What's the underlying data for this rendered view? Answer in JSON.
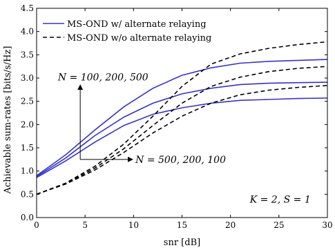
{
  "chart_data": {
    "type": "line",
    "xlabel": "snr [dB]",
    "ylabel": "Achievable sum-rates [bits/s/Hz]",
    "xlim": [
      0,
      30
    ],
    "ylim": [
      0,
      4.5
    ],
    "xticks": [
      0,
      5,
      10,
      15,
      20,
      25,
      30
    ],
    "yticks": [
      0.0,
      0.5,
      1.0,
      1.5,
      2.0,
      2.5,
      3.0,
      3.5,
      4.0,
      4.5
    ],
    "xtick_labels": [
      "0",
      "5",
      "10",
      "15",
      "20",
      "25",
      "30"
    ],
    "ytick_labels": [
      "0.0",
      "0.5",
      "1.0",
      "1.5",
      "2.0",
      "2.5",
      "3.0",
      "3.5",
      "4.0",
      "4.5"
    ],
    "grid": false,
    "legend": {
      "placement": "top-left",
      "entries": [
        {
          "label": "MS-OND w/ alternate relaying",
          "color": "#3333cc",
          "style": "solid"
        },
        {
          "label": "MS-OND w/o alternate relaying",
          "color": "#000000",
          "style": "dashed"
        }
      ]
    },
    "series": [
      {
        "group": "w/",
        "N": 500,
        "color": "#3333cc",
        "style": "solid",
        "x": [
          0,
          3,
          6,
          9,
          12,
          15,
          18,
          21,
          24,
          27,
          30
        ],
        "y": [
          0.9,
          1.35,
          1.88,
          2.38,
          2.78,
          3.06,
          3.22,
          3.32,
          3.36,
          3.38,
          3.4
        ]
      },
      {
        "group": "w/",
        "N": 200,
        "color": "#3333cc",
        "style": "solid",
        "x": [
          0,
          3,
          6,
          9,
          12,
          15,
          18,
          21,
          24,
          27,
          30
        ],
        "y": [
          0.88,
          1.28,
          1.76,
          2.16,
          2.46,
          2.66,
          2.78,
          2.86,
          2.89,
          2.9,
          2.91
        ]
      },
      {
        "group": "w/",
        "N": 100,
        "color": "#3333cc",
        "style": "solid",
        "x": [
          0,
          3,
          6,
          9,
          12,
          15,
          18,
          21,
          24,
          27,
          30
        ],
        "y": [
          0.86,
          1.22,
          1.62,
          1.98,
          2.22,
          2.36,
          2.46,
          2.52,
          2.54,
          2.56,
          2.57
        ]
      },
      {
        "group": "w/o",
        "N": 500,
        "color": "#000000",
        "style": "dashed",
        "x": [
          0,
          3,
          6,
          9,
          12,
          15,
          18,
          21,
          24,
          27,
          30
        ],
        "y": [
          0.5,
          0.74,
          1.1,
          1.58,
          2.18,
          2.82,
          3.3,
          3.52,
          3.64,
          3.72,
          3.78
        ]
      },
      {
        "group": "w/o",
        "N": 200,
        "color": "#000000",
        "style": "dashed",
        "x": [
          0,
          3,
          6,
          9,
          12,
          15,
          18,
          21,
          24,
          27,
          30
        ],
        "y": [
          0.5,
          0.73,
          1.06,
          1.48,
          1.98,
          2.46,
          2.82,
          3.02,
          3.14,
          3.21,
          3.25
        ]
      },
      {
        "group": "w/o",
        "N": 100,
        "color": "#000000",
        "style": "dashed",
        "x": [
          0,
          3,
          6,
          9,
          12,
          15,
          18,
          21,
          24,
          27,
          30
        ],
        "y": [
          0.5,
          0.72,
          1.02,
          1.4,
          1.82,
          2.18,
          2.46,
          2.64,
          2.74,
          2.8,
          2.84
        ]
      }
    ],
    "annotations": {
      "n_up": "N = 100, 200, 500",
      "n_right": "N = 500, 200, 100",
      "params": "K = 2, S = 1",
      "arrow_origin": {
        "x": 4.5,
        "y": 1.25
      },
      "arrow_up_tip": {
        "x": 4.5,
        "y": 2.85
      },
      "arrow_right_tip": {
        "x": 9.9,
        "y": 1.25
      },
      "n_up_at": {
        "x": 2.2,
        "y": 2.95
      },
      "n_right_at": {
        "x": 10.2,
        "y": 1.25
      },
      "params_at": {
        "x": 22,
        "y": 0.32
      }
    }
  }
}
